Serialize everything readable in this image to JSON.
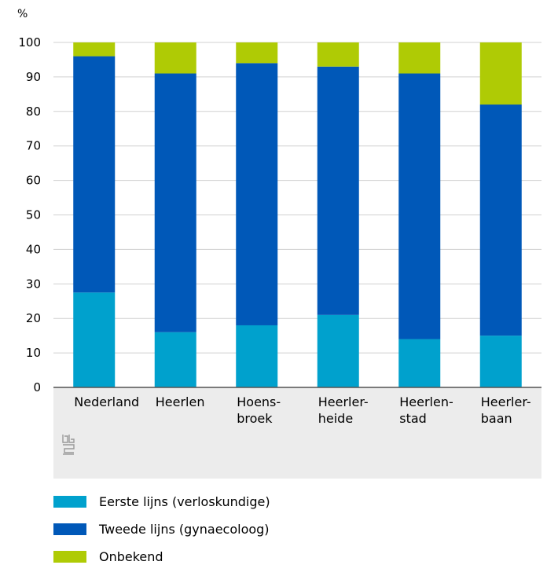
{
  "chart_data": {
    "type": "bar",
    "stacked": true,
    "unit_label": "%",
    "categories": [
      [
        "Nederland"
      ],
      [
        "Heerlen"
      ],
      [
        "Hoens-",
        "broek"
      ],
      [
        "Heerler-",
        "heide"
      ],
      [
        "Heerlen-",
        "stad"
      ],
      [
        "Heerler-",
        "baan"
      ]
    ],
    "series": [
      {
        "name": "Eerste lijns (verloskundige)",
        "color": "#00a1cd",
        "values": [
          27.5,
          16,
          18,
          21,
          14,
          15
        ]
      },
      {
        "name": "Tweede lijns (gynaecoloog)",
        "color": "#0058b8",
        "values": [
          68.5,
          75,
          76,
          72,
          77,
          67
        ]
      },
      {
        "name": "Onbekend",
        "color": "#afcb05",
        "values": [
          4,
          9,
          6,
          7,
          9,
          18
        ]
      }
    ],
    "ylim": [
      0,
      100
    ],
    "yticks": [
      0,
      10,
      20,
      30,
      40,
      50,
      60,
      70,
      80,
      90,
      100
    ],
    "grid": true,
    "legend_position": "bottom",
    "logo": "cbs-logo-icon"
  }
}
